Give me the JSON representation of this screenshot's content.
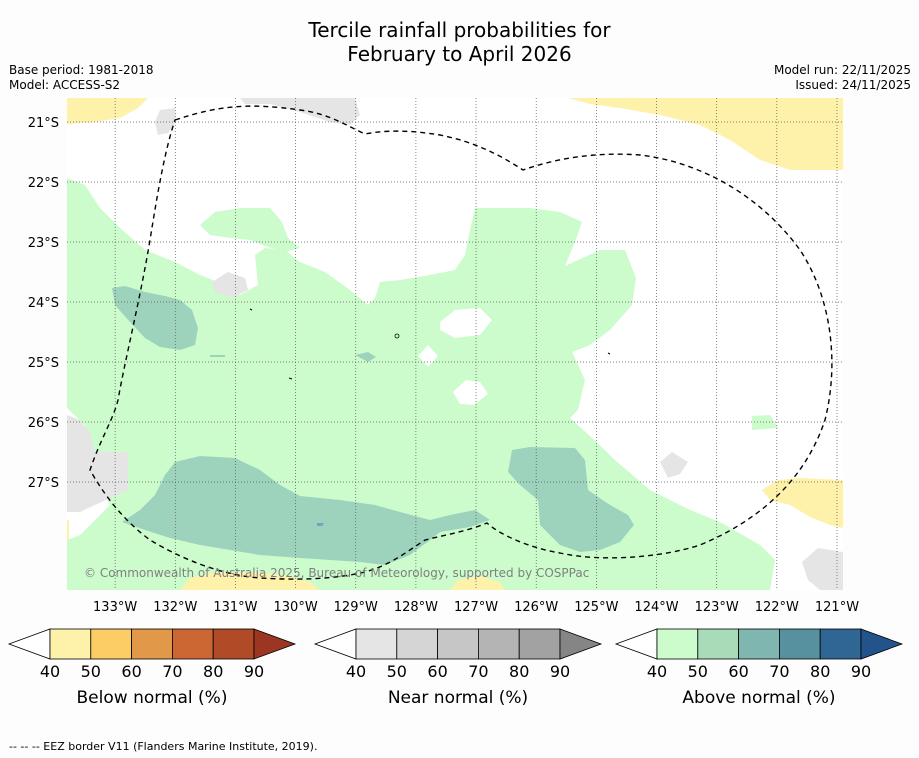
{
  "title": {
    "line1": "Tercile rainfall probabilities for",
    "line2": "February to April 2026"
  },
  "meta": {
    "base_period": "Base period: 1981-2018",
    "model": "Model: ACCESS-S2",
    "model_run": "Model run: 22/11/2025",
    "issued": "Issued: 24/11/2025"
  },
  "map": {
    "lat_labels": [
      "21°S",
      "22°S",
      "23°S",
      "24°S",
      "25°S",
      "26°S",
      "27°S"
    ],
    "lon_labels": [
      "133°W",
      "132°W",
      "131°W",
      "130°W",
      "129°W",
      "128°W",
      "127°W",
      "126°W",
      "125°W",
      "124°W",
      "123°W",
      "122°W",
      "121°W"
    ],
    "lon_range": [
      -133.8,
      -120.9
    ],
    "lat_range": [
      -20.6,
      -28.8
    ],
    "credit": "© Commonwealth of Australia 2025, Bureau of Meteorology, supported by COSPPac",
    "region_types": [
      "below-normal-40-50",
      "near-normal-40-50",
      "above-normal-40-50",
      "above-normal-50-60"
    ]
  },
  "colorbars": [
    {
      "name": "below",
      "title": "Below normal (%)",
      "ticks": [
        "40",
        "50",
        "60",
        "70",
        "80",
        "90"
      ],
      "colors": [
        "#fef1a9",
        "#fdcd65",
        "#e19849",
        "#cc6733",
        "#b04a27",
        "#9c3622"
      ]
    },
    {
      "name": "near",
      "title": "Near normal (%)",
      "ticks": [
        "40",
        "50",
        "60",
        "70",
        "80",
        "90"
      ],
      "colors": [
        "#e5e5e5",
        "#d5d5d5",
        "#c6c6c6",
        "#b4b4b4",
        "#a2a2a2",
        "#858585"
      ]
    },
    {
      "name": "above",
      "title": "Above normal (%)",
      "ticks": [
        "40",
        "50",
        "60",
        "70",
        "80",
        "90"
      ],
      "colors": [
        "#ccfccc",
        "#a8dbb8",
        "#7fb7b0",
        "#57909e",
        "#306693",
        "#22538a"
      ]
    }
  ],
  "footer": "--  --  -- EEZ border V11 (Flanders Marine Institute, 2019)."
}
